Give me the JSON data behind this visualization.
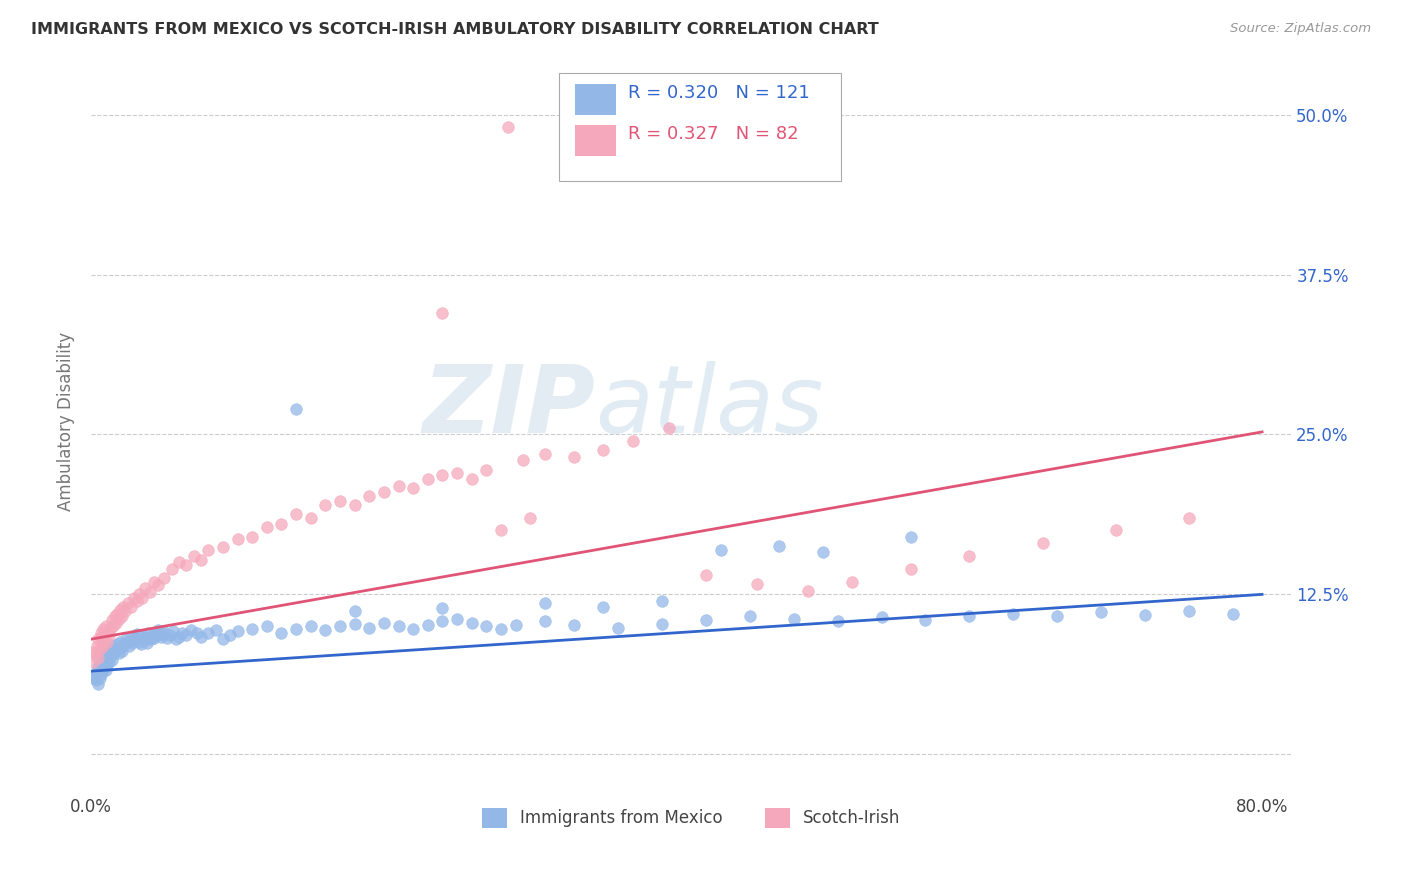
{
  "title": "IMMIGRANTS FROM MEXICO VS SCOTCH-IRISH AMBULATORY DISABILITY CORRELATION CHART",
  "source": "Source: ZipAtlas.com",
  "ylabel": "Ambulatory Disability",
  "xlim": [
    0.0,
    0.82
  ],
  "ylim": [
    -0.03,
    0.55
  ],
  "yticks": [
    0.0,
    0.125,
    0.25,
    0.375,
    0.5
  ],
  "legend_r_blue": "0.320",
  "legend_n_blue": "121",
  "legend_r_pink": "0.327",
  "legend_n_pink": "82",
  "blue_color": "#93B8E8",
  "pink_color": "#F5A8BC",
  "blue_line_color": "#3366CC",
  "pink_line_color": "#E05575",
  "background_color": "#ffffff",
  "grid_color": "#cccccc",
  "title_color": "#333333",
  "axis_label_color": "#777777",
  "blue_trend_x": [
    0.0,
    0.8
  ],
  "blue_trend_y": [
    0.065,
    0.125
  ],
  "pink_trend_x": [
    0.0,
    0.8
  ],
  "pink_trend_y": [
    0.09,
    0.252
  ],
  "blue_scatter_x": [
    0.001,
    0.002,
    0.003,
    0.004,
    0.005,
    0.005,
    0.006,
    0.006,
    0.007,
    0.007,
    0.008,
    0.008,
    0.009,
    0.009,
    0.01,
    0.01,
    0.011,
    0.011,
    0.012,
    0.013,
    0.013,
    0.014,
    0.015,
    0.015,
    0.016,
    0.017,
    0.018,
    0.019,
    0.02,
    0.02,
    0.021,
    0.022,
    0.023,
    0.024,
    0.025,
    0.026,
    0.027,
    0.028,
    0.029,
    0.03,
    0.031,
    0.032,
    0.033,
    0.034,
    0.035,
    0.036,
    0.037,
    0.038,
    0.039,
    0.04,
    0.041,
    0.042,
    0.043,
    0.044,
    0.045,
    0.046,
    0.047,
    0.048,
    0.049,
    0.05,
    0.052,
    0.054,
    0.056,
    0.058,
    0.06,
    0.062,
    0.065,
    0.068,
    0.072,
    0.075,
    0.08,
    0.085,
    0.09,
    0.095,
    0.1,
    0.11,
    0.12,
    0.13,
    0.14,
    0.15,
    0.16,
    0.17,
    0.18,
    0.19,
    0.2,
    0.21,
    0.22,
    0.23,
    0.24,
    0.25,
    0.26,
    0.27,
    0.28,
    0.29,
    0.31,
    0.33,
    0.36,
    0.39,
    0.42,
    0.45,
    0.48,
    0.51,
    0.54,
    0.57,
    0.6,
    0.63,
    0.66,
    0.69,
    0.72,
    0.75,
    0.78,
    0.43,
    0.35,
    0.5,
    0.56,
    0.47,
    0.39,
    0.31,
    0.24,
    0.18,
    0.14
  ],
  "blue_scatter_y": [
    0.06,
    0.062,
    0.058,
    0.064,
    0.055,
    0.068,
    0.06,
    0.072,
    0.063,
    0.07,
    0.065,
    0.075,
    0.068,
    0.073,
    0.066,
    0.078,
    0.07,
    0.08,
    0.072,
    0.076,
    0.082,
    0.074,
    0.078,
    0.085,
    0.08,
    0.082,
    0.086,
    0.079,
    0.083,
    0.088,
    0.081,
    0.085,
    0.087,
    0.09,
    0.088,
    0.085,
    0.092,
    0.087,
    0.089,
    0.091,
    0.094,
    0.09,
    0.088,
    0.086,
    0.093,
    0.091,
    0.089,
    0.087,
    0.095,
    0.092,
    0.09,
    0.093,
    0.091,
    0.095,
    0.093,
    0.097,
    0.094,
    0.092,
    0.096,
    0.094,
    0.091,
    0.093,
    0.096,
    0.09,
    0.092,
    0.095,
    0.093,
    0.097,
    0.095,
    0.092,
    0.095,
    0.097,
    0.09,
    0.093,
    0.096,
    0.098,
    0.1,
    0.095,
    0.098,
    0.1,
    0.097,
    0.1,
    0.102,
    0.099,
    0.103,
    0.1,
    0.098,
    0.101,
    0.104,
    0.106,
    0.103,
    0.1,
    0.098,
    0.101,
    0.104,
    0.101,
    0.099,
    0.102,
    0.105,
    0.108,
    0.106,
    0.104,
    0.107,
    0.105,
    0.108,
    0.11,
    0.108,
    0.111,
    0.109,
    0.112,
    0.11,
    0.16,
    0.115,
    0.158,
    0.17,
    0.163,
    0.12,
    0.118,
    0.114,
    0.112,
    0.27
  ],
  "pink_scatter_x": [
    0.001,
    0.002,
    0.003,
    0.004,
    0.005,
    0.005,
    0.006,
    0.007,
    0.007,
    0.008,
    0.008,
    0.009,
    0.01,
    0.01,
    0.011,
    0.012,
    0.013,
    0.014,
    0.015,
    0.016,
    0.017,
    0.018,
    0.019,
    0.02,
    0.021,
    0.022,
    0.023,
    0.025,
    0.027,
    0.029,
    0.031,
    0.033,
    0.035,
    0.037,
    0.04,
    0.043,
    0.046,
    0.05,
    0.055,
    0.06,
    0.065,
    0.07,
    0.075,
    0.08,
    0.09,
    0.1,
    0.11,
    0.12,
    0.13,
    0.14,
    0.15,
    0.16,
    0.17,
    0.18,
    0.19,
    0.2,
    0.21,
    0.22,
    0.23,
    0.24,
    0.25,
    0.26,
    0.27,
    0.28,
    0.295,
    0.31,
    0.33,
    0.35,
    0.37,
    0.395,
    0.42,
    0.455,
    0.49,
    0.52,
    0.56,
    0.6,
    0.65,
    0.7,
    0.75,
    0.3,
    0.24,
    0.285
  ],
  "pink_scatter_y": [
    0.072,
    0.08,
    0.078,
    0.085,
    0.075,
    0.09,
    0.082,
    0.092,
    0.095,
    0.085,
    0.098,
    0.09,
    0.095,
    0.1,
    0.088,
    0.093,
    0.098,
    0.105,
    0.1,
    0.108,
    0.103,
    0.11,
    0.106,
    0.113,
    0.108,
    0.115,
    0.112,
    0.118,
    0.115,
    0.122,
    0.12,
    0.125,
    0.122,
    0.13,
    0.127,
    0.135,
    0.132,
    0.138,
    0.145,
    0.15,
    0.148,
    0.155,
    0.152,
    0.16,
    0.162,
    0.168,
    0.17,
    0.178,
    0.18,
    0.188,
    0.185,
    0.195,
    0.198,
    0.195,
    0.202,
    0.205,
    0.21,
    0.208,
    0.215,
    0.218,
    0.22,
    0.215,
    0.222,
    0.175,
    0.23,
    0.235,
    0.232,
    0.238,
    0.245,
    0.255,
    0.14,
    0.133,
    0.128,
    0.135,
    0.145,
    0.155,
    0.165,
    0.175,
    0.185,
    0.185,
    0.345,
    0.49
  ]
}
